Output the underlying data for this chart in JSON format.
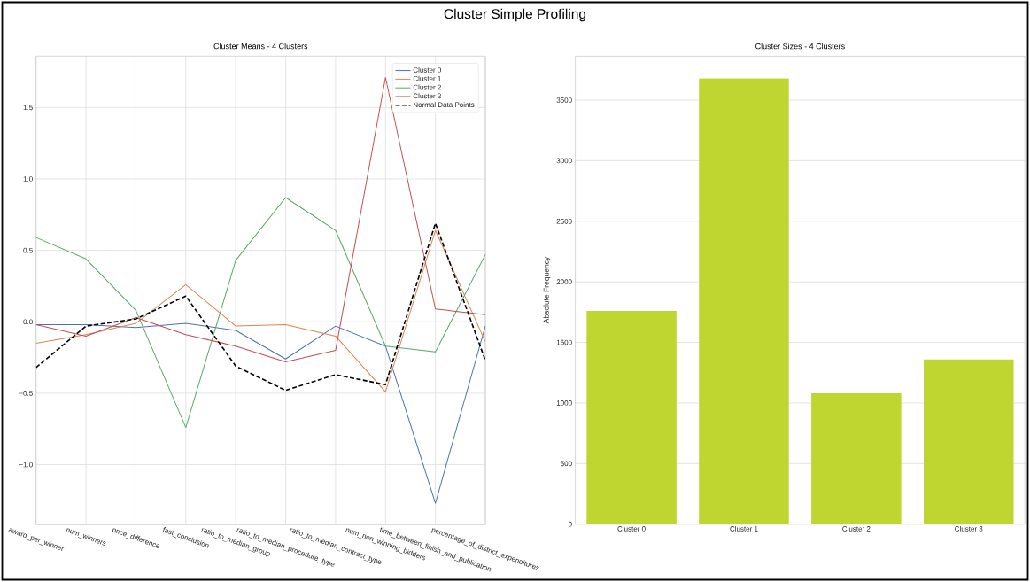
{
  "chart_data": [
    {
      "type": "other",
      "title": "Cluster Simple Profiling"
    },
    {
      "type": "line",
      "title": "Cluster Means - 4 Clusters",
      "categories": [
        "award_per_winner",
        "num_winners",
        "price_difference",
        "fast_conclusion",
        "ratio_to_median_group",
        "ratio_to_median_procedure_type",
        "ratio_to_median_contract_type",
        "num_non_winning_bidders",
        "time_between_finish_and_publication",
        "percentage_of_district_expenditures"
      ],
      "series": [
        {
          "name": "Cluster 0",
          "color": "#4c72b0",
          "values": [
            -0.02,
            -0.02,
            -0.04,
            -0.01,
            -0.06,
            -0.26,
            -0.03,
            -0.17,
            -1.27,
            -0.03
          ]
        },
        {
          "name": "Cluster 1",
          "color": "#dd8452",
          "values": [
            -0.15,
            -0.09,
            -0.01,
            0.26,
            -0.03,
            -0.02,
            -0.1,
            -0.49,
            0.64,
            -0.14
          ]
        },
        {
          "name": "Cluster 2",
          "color": "#55a868",
          "values": [
            0.59,
            0.44,
            0.08,
            -0.74,
            0.43,
            0.87,
            0.64,
            -0.17,
            -0.21,
            0.47
          ]
        },
        {
          "name": "Cluster 3",
          "color": "#c44e52",
          "values": [
            -0.02,
            -0.1,
            0.03,
            -0.09,
            -0.17,
            -0.28,
            -0.2,
            1.71,
            0.09,
            0.05
          ]
        },
        {
          "name": "Normal Data Points",
          "color": "#000000",
          "line_style": "dashed",
          "values": [
            -0.32,
            -0.03,
            0.02,
            0.18,
            -0.31,
            -0.48,
            -0.37,
            -0.44,
            0.69,
            -0.27
          ]
        }
      ],
      "ylim": [
        -1.42,
        1.86
      ],
      "yticks": [
        {
          "value": -1.0,
          "label": "−1.0"
        },
        {
          "value": -0.5,
          "label": "−0.5"
        },
        {
          "value": 0,
          "label": "0.0"
        },
        {
          "value": 0.5,
          "label": "0.5"
        },
        {
          "value": 1.0,
          "label": "1.0"
        },
        {
          "value": 1.5,
          "label": "1.5"
        }
      ],
      "grid": true,
      "legend": "top right"
    },
    {
      "type": "bar",
      "title": "Cluster Sizes - 4 Clusters",
      "ylabel": "Absolute Frequency",
      "categories": [
        "Cluster 0",
        "Cluster 1",
        "Cluster 2",
        "Cluster 3"
      ],
      "values": [
        1760,
        3680,
        1080,
        1360
      ],
      "color": "#bfd631",
      "ylim": [
        0,
        3863
      ],
      "yticks": [
        0,
        500,
        1000,
        1500,
        2000,
        2500,
        3000,
        3500
      ],
      "grid": "y"
    }
  ]
}
